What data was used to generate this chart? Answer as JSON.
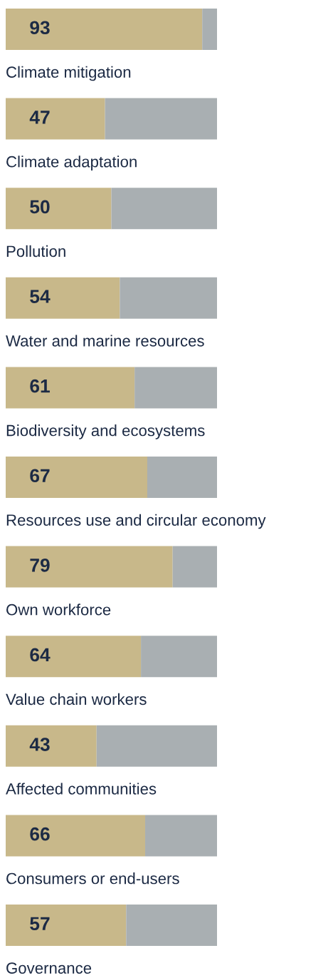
{
  "chart_data": {
    "type": "bar",
    "orientation": "horizontal",
    "stacked": true,
    "xlim": [
      0,
      100
    ],
    "categories": [
      "Climate mitigation",
      "Climate adaptation",
      "Pollution",
      "Water and marine resources",
      "Biodiversity and ecosystems",
      "Resources use and circular economy",
      "Own workforce",
      "Value chain workers",
      "Affected communities",
      "Consumers or end-users",
      "Governance"
    ],
    "series": [
      {
        "color": "#c8b88a",
        "values": [
          93,
          47,
          50,
          54,
          61,
          67,
          79,
          64,
          43,
          66,
          57
        ],
        "value_labels": [
          "93",
          "47",
          "50",
          "54",
          "61",
          "67",
          "79",
          "64",
          "43",
          "66",
          "57"
        ]
      },
      {
        "color": "#a9afb2",
        "values": [
          7,
          53,
          50,
          46,
          39,
          33,
          21,
          36,
          57,
          34,
          43
        ]
      }
    ]
  }
}
